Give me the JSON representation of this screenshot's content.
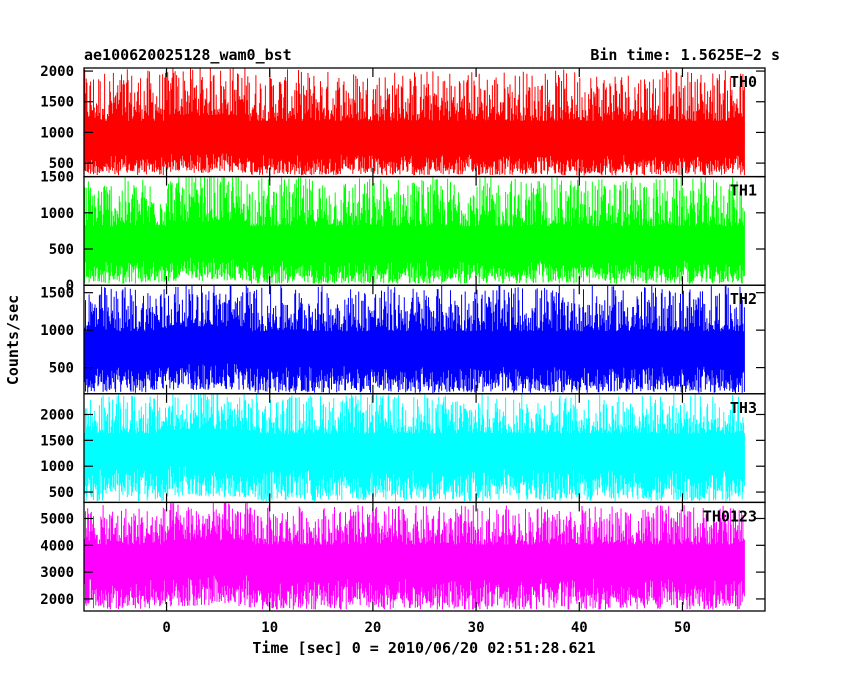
{
  "chart_data": {
    "type": "line",
    "title_left": "ae100620025128_wam0_bst",
    "title_right": "Bin time: 1.5625E−2 s",
    "xlabel": "Time [sec] 0 = 2010/06/20 02:51:28.621",
    "ylabel": "Counts/sec",
    "xlim": [
      -8,
      58
    ],
    "x_ticks": [
      "0",
      "10",
      "20",
      "30",
      "40",
      "50"
    ],
    "x_tick_values": [
      0,
      10,
      20,
      30,
      40,
      50
    ],
    "data_x_range": [
      -8,
      56
    ],
    "bin_time": 0.015625,
    "panels": [
      {
        "name": "TH0",
        "color": "#ff0000",
        "ylim": [
          280,
          2050
        ],
        "y_ticks": [
          "500",
          "1000",
          "1500",
          "2000"
        ],
        "y_tick_values": [
          500,
          1000,
          1500,
          2000
        ],
        "series_summary": {
          "mean": 830,
          "min": 300,
          "max": 2030
        }
      },
      {
        "name": "TH1",
        "color": "#00ff00",
        "ylim": [
          0,
          1500
        ],
        "y_ticks": [
          "0",
          "500",
          "1000",
          "1500"
        ],
        "y_tick_values": [
          0,
          500,
          1000,
          1500
        ],
        "series_summary": {
          "mean": 520,
          "min": 20,
          "max": 1500
        }
      },
      {
        "name": "TH2",
        "color": "#0000ff",
        "ylim": [
          150,
          1600
        ],
        "y_ticks": [
          "500",
          "1000",
          "1500"
        ],
        "y_tick_values": [
          500,
          1000,
          1500
        ],
        "series_summary": {
          "mean": 720,
          "min": 160,
          "max": 1600
        }
      },
      {
        "name": "TH3",
        "color": "#00ffff",
        "ylim": [
          300,
          2400
        ],
        "y_ticks": [
          "500",
          "1000",
          "1500",
          "2000"
        ],
        "y_tick_values": [
          500,
          1000,
          1500,
          2000
        ],
        "series_summary": {
          "mean": 1300,
          "min": 320,
          "max": 2400
        }
      },
      {
        "name": "TH0123",
        "color": "#ff00ff",
        "ylim": [
          1550,
          5600
        ],
        "y_ticks": [
          "2000",
          "3000",
          "4000",
          "5000"
        ],
        "y_tick_values": [
          2000,
          3000,
          4000,
          5000
        ],
        "series_summary": {
          "mean": 3400,
          "min": 1600,
          "max": 5500
        }
      }
    ]
  }
}
